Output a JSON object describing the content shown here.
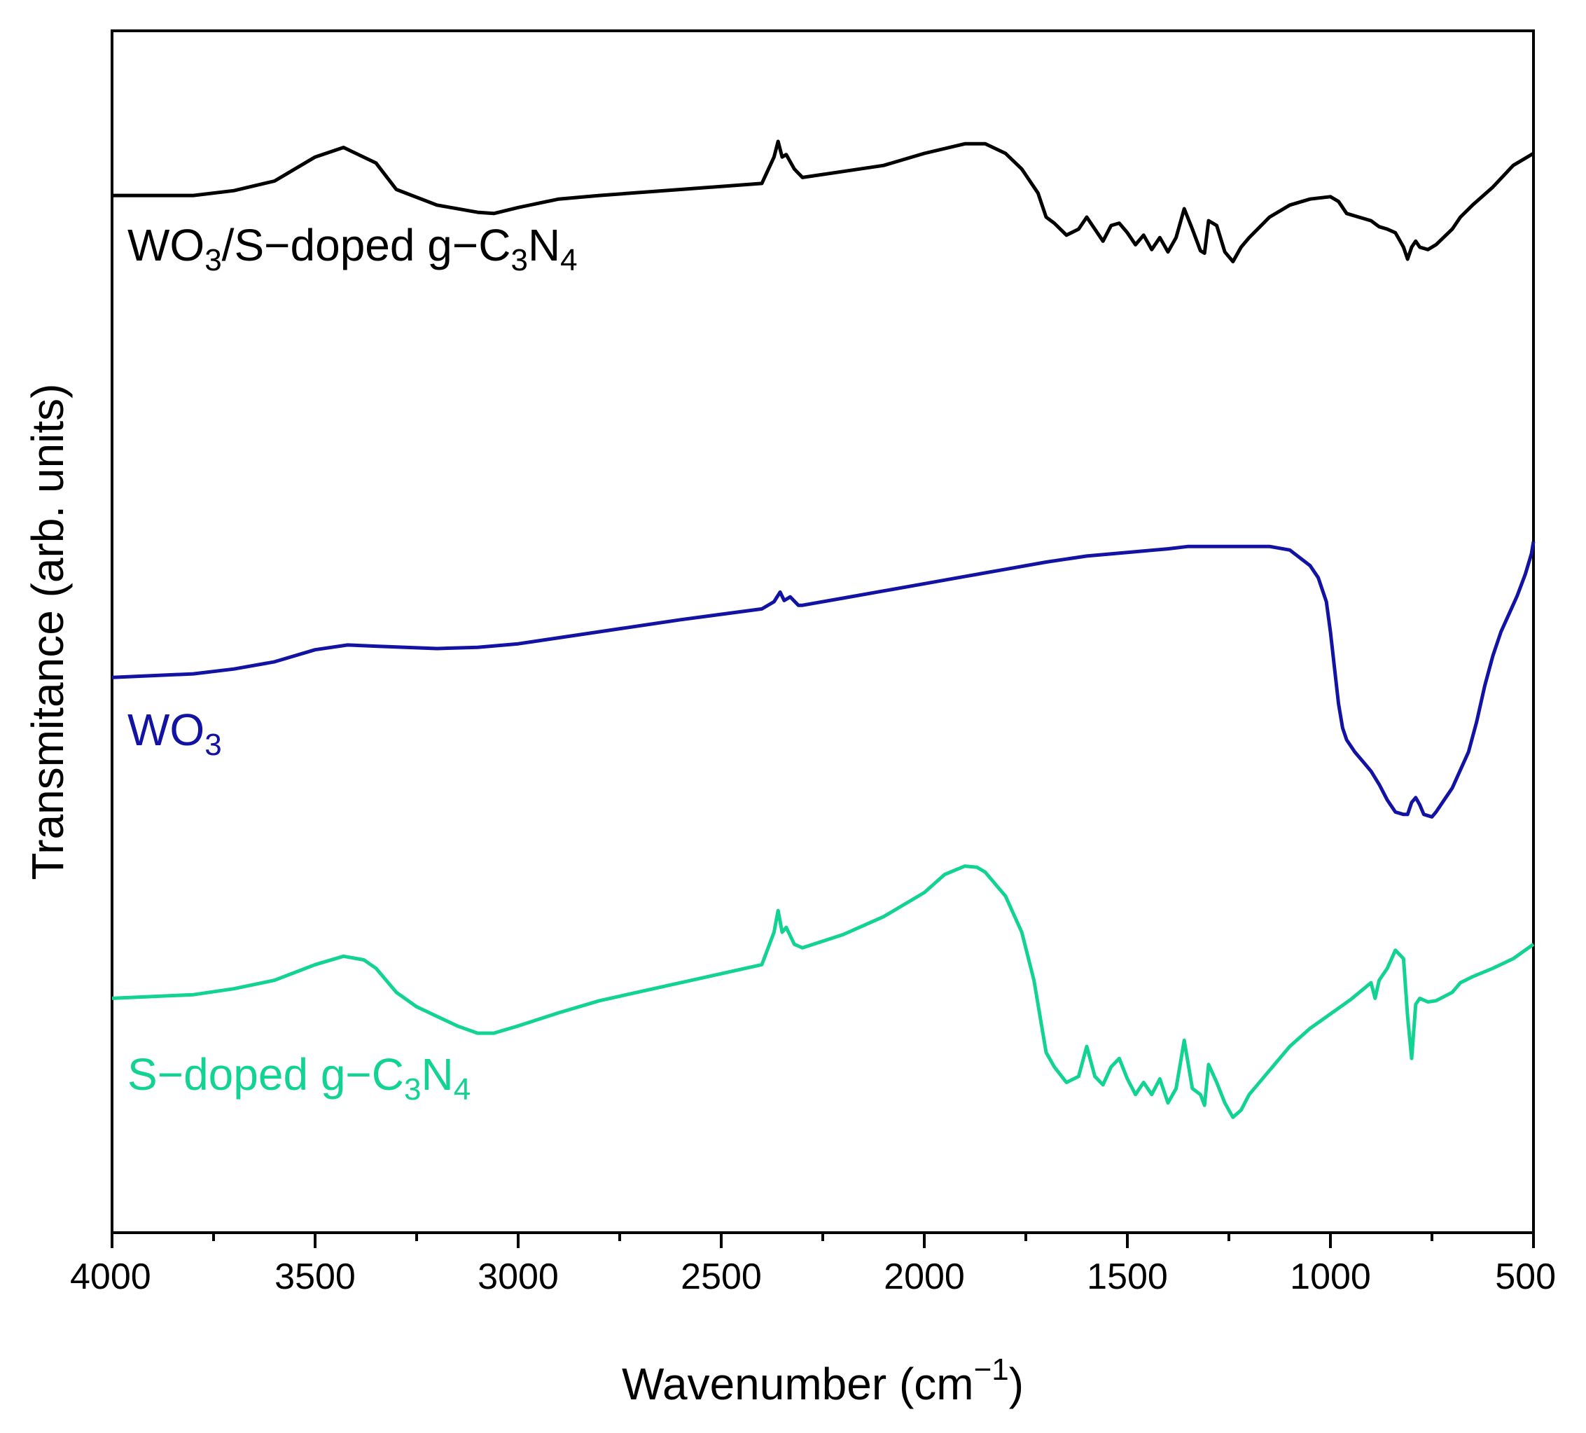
{
  "chart_data": {
    "type": "line",
    "title": "",
    "xlabel": "Wavenumber (cm",
    "xlabel_sup": "−1",
    "xlabel_close": ")",
    "ylabel": "Transmitance (arb. units)",
    "xlim": [
      4000,
      500
    ],
    "ylim": [
      0,
      100
    ],
    "x_ticks": [
      "4000",
      "3500",
      "3000",
      "2500",
      "2000",
      "1500",
      "1000",
      "500"
    ],
    "x_tick_values": [
      4000,
      3500,
      3000,
      2500,
      2000,
      1500,
      1000,
      500
    ],
    "grid": false,
    "series": [
      {
        "name": "WO3/S-doped g-C3N4",
        "label_parts": [
          {
            "text": "WO"
          },
          {
            "text": "3",
            "sub": true
          },
          {
            "text": "/S−doped g−C"
          },
          {
            "text": "3",
            "sub": true
          },
          {
            "text": "N"
          },
          {
            "text": "4",
            "sub": true
          }
        ],
        "color": "#000000",
        "x": [
          4000,
          3800,
          3700,
          3600,
          3500,
          3430,
          3350,
          3300,
          3200,
          3100,
          3060,
          3000,
          2900,
          2800,
          2600,
          2400,
          2370,
          2360,
          2350,
          2340,
          2320,
          2300,
          2200,
          2100,
          2000,
          1900,
          1850,
          1800,
          1760,
          1720,
          1700,
          1680,
          1650,
          1620,
          1600,
          1580,
          1560,
          1540,
          1520,
          1500,
          1480,
          1460,
          1440,
          1420,
          1400,
          1380,
          1360,
          1340,
          1320,
          1310,
          1300,
          1280,
          1260,
          1240,
          1220,
          1200,
          1150,
          1100,
          1050,
          1000,
          980,
          960,
          930,
          900,
          880,
          860,
          840,
          820,
          810,
          800,
          790,
          780,
          760,
          740,
          700,
          680,
          650,
          600,
          550,
          500
        ],
        "y": [
          86.3,
          86.3,
          86.7,
          87.5,
          89.5,
          90.3,
          89.0,
          86.8,
          85.5,
          84.9,
          84.8,
          85.3,
          86.0,
          86.3,
          86.8,
          87.3,
          89.5,
          90.8,
          89.5,
          89.7,
          88.5,
          87.8,
          88.3,
          88.8,
          89.8,
          90.6,
          90.6,
          89.8,
          88.5,
          86.5,
          84.5,
          84.0,
          83.0,
          83.5,
          84.5,
          83.5,
          82.5,
          83.8,
          84.0,
          83.2,
          82.2,
          83.0,
          81.8,
          82.8,
          81.6,
          82.8,
          85.2,
          83.5,
          81.7,
          81.5,
          84.2,
          83.8,
          81.6,
          80.8,
          82.0,
          82.8,
          84.5,
          85.5,
          86.0,
          86.2,
          85.8,
          84.8,
          84.5,
          84.2,
          83.7,
          83.5,
          83.2,
          82.0,
          81.0,
          82.0,
          82.5,
          82.0,
          81.8,
          82.2,
          83.5,
          84.5,
          85.5,
          87.0,
          88.8,
          89.8
        ]
      },
      {
        "name": "WO3",
        "label_parts": [
          {
            "text": "WO"
          },
          {
            "text": "3",
            "sub": true
          }
        ],
        "color": "#1313a3",
        "x": [
          4000,
          3800,
          3700,
          3600,
          3500,
          3420,
          3350,
          3200,
          3100,
          3000,
          2800,
          2600,
          2400,
          2370,
          2355,
          2345,
          2330,
          2310,
          2300,
          2200,
          2100,
          2000,
          1900,
          1800,
          1700,
          1600,
          1500,
          1400,
          1350,
          1300,
          1200,
          1150,
          1100,
          1050,
          1030,
          1010,
          1000,
          990,
          980,
          970,
          960,
          950,
          940,
          920,
          900,
          880,
          860,
          840,
          820,
          810,
          800,
          790,
          780,
          770,
          750,
          740,
          720,
          700,
          680,
          660,
          640,
          620,
          600,
          580,
          560,
          540,
          520,
          505,
          500
        ],
        "y": [
          46.2,
          46.5,
          46.9,
          47.5,
          48.5,
          48.9,
          48.8,
          48.6,
          48.7,
          49.0,
          50.0,
          51.0,
          51.9,
          52.5,
          53.3,
          52.6,
          52.9,
          52.2,
          52.2,
          52.8,
          53.4,
          54.0,
          54.6,
          55.2,
          55.8,
          56.3,
          56.6,
          56.9,
          57.1,
          57.1,
          57.1,
          57.1,
          56.8,
          55.5,
          54.5,
          52.5,
          50.0,
          47.0,
          44.0,
          42.0,
          41.0,
          40.5,
          40.0,
          39.2,
          38.4,
          37.3,
          36.0,
          35.0,
          34.8,
          34.8,
          35.8,
          36.2,
          35.6,
          34.8,
          34.6,
          35.0,
          36.0,
          37.0,
          38.5,
          40.0,
          42.5,
          45.5,
          48.0,
          50.0,
          51.5,
          53.0,
          54.8,
          56.5,
          57.5
        ]
      },
      {
        "name": "S-doped g-C3N4",
        "label_parts": [
          {
            "text": "S−doped g−C"
          },
          {
            "text": "3",
            "sub": true
          },
          {
            "text": "N"
          },
          {
            "text": "4",
            "sub": true
          }
        ],
        "color": "#12d391",
        "x": [
          4000,
          3800,
          3700,
          3600,
          3500,
          3430,
          3380,
          3350,
          3300,
          3250,
          3200,
          3150,
          3100,
          3060,
          3000,
          2900,
          2800,
          2600,
          2400,
          2370,
          2360,
          2350,
          2340,
          2320,
          2300,
          2200,
          2100,
          2000,
          1950,
          1900,
          1870,
          1850,
          1800,
          1760,
          1730,
          1710,
          1700,
          1680,
          1650,
          1620,
          1600,
          1580,
          1560,
          1540,
          1520,
          1500,
          1480,
          1460,
          1440,
          1420,
          1400,
          1380,
          1360,
          1340,
          1320,
          1310,
          1300,
          1280,
          1260,
          1240,
          1220,
          1200,
          1150,
          1100,
          1050,
          1000,
          950,
          900,
          890,
          880,
          860,
          840,
          820,
          810,
          800,
          790,
          780,
          760,
          740,
          700,
          680,
          650,
          600,
          550,
          500
        ],
        "y": [
          19.5,
          19.8,
          20.3,
          21.0,
          22.3,
          23.0,
          22.7,
          22.0,
          20.0,
          18.8,
          18.0,
          17.2,
          16.6,
          16.6,
          17.2,
          18.3,
          19.3,
          20.8,
          22.3,
          25.0,
          26.8,
          25.0,
          25.4,
          24.0,
          23.7,
          24.8,
          26.3,
          28.3,
          29.8,
          30.5,
          30.4,
          30.0,
          28.0,
          25.0,
          21.0,
          17.0,
          15.0,
          13.8,
          12.5,
          13.0,
          15.5,
          13.0,
          12.3,
          13.8,
          14.5,
          12.8,
          11.5,
          12.5,
          11.5,
          12.8,
          10.8,
          12.0,
          16.0,
          12.0,
          11.5,
          10.6,
          14.0,
          12.5,
          10.8,
          9.6,
          10.2,
          11.5,
          13.5,
          15.5,
          17.0,
          18.2,
          19.4,
          20.8,
          19.5,
          21.0,
          22.0,
          23.5,
          22.8,
          18.0,
          14.5,
          19.0,
          19.5,
          19.2,
          19.3,
          20.0,
          20.8,
          21.3,
          22.0,
          22.8,
          24.0
        ]
      }
    ]
  }
}
